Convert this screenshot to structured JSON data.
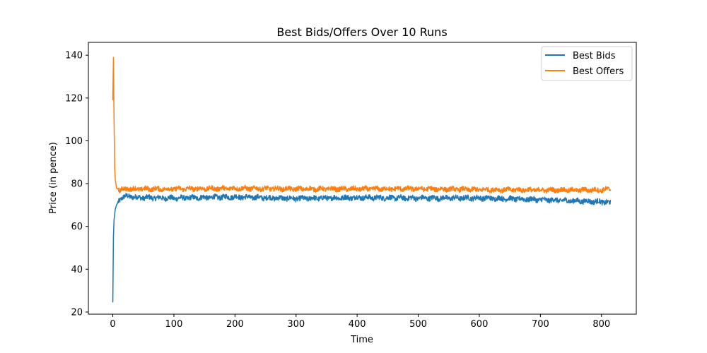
{
  "chart_data": {
    "type": "line",
    "title": "Best Bids/Offers Over 10 Runs",
    "xlabel": "Time",
    "ylabel": "Price (in pence)",
    "xlim": [
      -40,
      857
    ],
    "ylim": [
      19,
      146
    ],
    "xticks": [
      0,
      100,
      200,
      300,
      400,
      500,
      600,
      700,
      800
    ],
    "yticks": [
      20,
      40,
      60,
      80,
      100,
      120,
      140
    ],
    "grid": false,
    "legend_position": "top-right",
    "series": [
      {
        "name": "Best Bids",
        "color": "#1f77b4",
        "anchors": [
          [
            0,
            24.5
          ],
          [
            1,
            55
          ],
          [
            2,
            63
          ],
          [
            4,
            68
          ],
          [
            6,
            70
          ],
          [
            10,
            72
          ],
          [
            15,
            73.5
          ],
          [
            20,
            74
          ],
          [
            30,
            74
          ],
          [
            40,
            73.5
          ],
          [
            100,
            73.2
          ],
          [
            200,
            73.8
          ],
          [
            300,
            73
          ],
          [
            400,
            73.5
          ],
          [
            500,
            73.2
          ],
          [
            600,
            73.3
          ],
          [
            700,
            72.5
          ],
          [
            750,
            72
          ],
          [
            800,
            71.5
          ],
          [
            815,
            71
          ]
        ],
        "noise_amplitude": 1.2,
        "x_end": 815
      },
      {
        "name": "Best Offers",
        "color": "#ff7f0e",
        "anchors": [
          [
            0,
            119
          ],
          [
            1,
            139
          ],
          [
            2,
            110
          ],
          [
            3,
            88
          ],
          [
            4,
            82
          ],
          [
            6,
            78
          ],
          [
            10,
            77
          ],
          [
            20,
            77.5
          ],
          [
            100,
            77.5
          ],
          [
            200,
            77.8
          ],
          [
            300,
            77.5
          ],
          [
            400,
            77.5
          ],
          [
            500,
            77.6
          ],
          [
            600,
            77.2
          ],
          [
            700,
            77
          ],
          [
            800,
            77
          ],
          [
            815,
            77.5
          ]
        ],
        "noise_amplitude": 1.1,
        "x_end": 815
      }
    ]
  }
}
